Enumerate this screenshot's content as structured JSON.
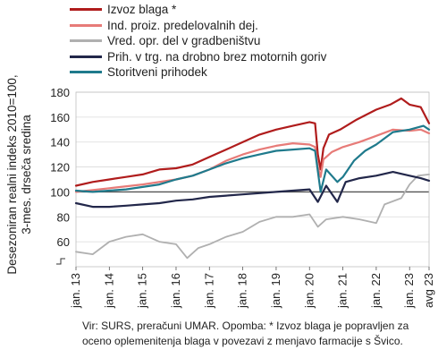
{
  "chart_data": {
    "type": "line",
    "ylabel": "Desezoniran realni indeks 2010=100, 3-mes. drseča sredina",
    "ylabel_lines": [
      "Desezoniran realni indeks 2010=100,",
      "3-mes. drseča sredina"
    ],
    "ylim": [
      40,
      180
    ],
    "yticks": [
      60,
      80,
      100,
      120,
      140,
      160,
      180
    ],
    "ytick_labels": [
      "60",
      "80",
      "100",
      "120",
      "140",
      "160",
      "180"
    ],
    "xlim": [
      "2013-01",
      "2023-08"
    ],
    "xtick_labels": [
      "jan. 13",
      "jan. 14",
      "jan. 15",
      "jan. 16",
      "jan. 17",
      "jan. 18",
      "jan. 19",
      "jan. 20",
      "jan. 21",
      "jan. 22",
      "jan. 23",
      "avg 23"
    ],
    "reference_line": 100,
    "grid": "horizontal",
    "legend_position": "top-left",
    "series": [
      {
        "name": "Izvoz blaga *",
        "color": "#b01c1c",
        "points": [
          [
            "2013-01",
            105
          ],
          [
            "2013-07",
            108
          ],
          [
            "2014-01",
            110
          ],
          [
            "2014-07",
            112
          ],
          [
            "2015-01",
            114
          ],
          [
            "2015-07",
            118
          ],
          [
            "2016-01",
            119
          ],
          [
            "2016-07",
            122
          ],
          [
            "2017-01",
            128
          ],
          [
            "2017-07",
            134
          ],
          [
            "2018-01",
            140
          ],
          [
            "2018-07",
            146
          ],
          [
            "2019-01",
            150
          ],
          [
            "2019-07",
            153
          ],
          [
            "2020-01",
            156
          ],
          [
            "2020-03",
            155
          ],
          [
            "2020-04",
            130
          ],
          [
            "2020-05",
            118
          ],
          [
            "2020-06",
            135
          ],
          [
            "2020-08",
            146
          ],
          [
            "2020-12",
            150
          ],
          [
            "2021-06",
            158
          ],
          [
            "2022-01",
            166
          ],
          [
            "2022-06",
            170
          ],
          [
            "2022-10",
            175
          ],
          [
            "2023-01",
            170
          ],
          [
            "2023-05",
            168
          ],
          [
            "2023-08",
            155
          ]
        ]
      },
      {
        "name": "Ind. proiz. predelovalnih dej.",
        "color": "#e77b78",
        "points": [
          [
            "2013-01",
            100
          ],
          [
            "2014-01",
            103
          ],
          [
            "2015-01",
            106
          ],
          [
            "2016-01",
            110
          ],
          [
            "2016-07",
            113
          ],
          [
            "2017-01",
            118
          ],
          [
            "2017-07",
            125
          ],
          [
            "2018-01",
            130
          ],
          [
            "2018-07",
            134
          ],
          [
            "2019-01",
            137
          ],
          [
            "2019-07",
            139
          ],
          [
            "2020-01",
            138
          ],
          [
            "2020-03",
            136
          ],
          [
            "2020-04",
            120
          ],
          [
            "2020-05",
            112
          ],
          [
            "2020-06",
            126
          ],
          [
            "2020-09",
            132
          ],
          [
            "2021-01",
            136
          ],
          [
            "2021-07",
            140
          ],
          [
            "2022-01",
            145
          ],
          [
            "2022-07",
            150
          ],
          [
            "2023-01",
            149
          ],
          [
            "2023-05",
            150
          ],
          [
            "2023-08",
            147
          ]
        ]
      },
      {
        "name": "Vred. opr. del v gradbeništvu",
        "color": "#b0b0b0",
        "points": [
          [
            "2013-01",
            52
          ],
          [
            "2013-07",
            50
          ],
          [
            "2014-01",
            60
          ],
          [
            "2014-07",
            64
          ],
          [
            "2015-01",
            66
          ],
          [
            "2015-07",
            60
          ],
          [
            "2016-01",
            58
          ],
          [
            "2016-05",
            47
          ],
          [
            "2016-09",
            55
          ],
          [
            "2017-01",
            58
          ],
          [
            "2017-07",
            64
          ],
          [
            "2018-01",
            68
          ],
          [
            "2018-07",
            76
          ],
          [
            "2019-01",
            80
          ],
          [
            "2019-07",
            80
          ],
          [
            "2020-01",
            82
          ],
          [
            "2020-04",
            72
          ],
          [
            "2020-07",
            78
          ],
          [
            "2021-01",
            80
          ],
          [
            "2021-07",
            78
          ],
          [
            "2022-01",
            75
          ],
          [
            "2022-04",
            90
          ],
          [
            "2022-10",
            95
          ],
          [
            "2023-01",
            106
          ],
          [
            "2023-04",
            113
          ],
          [
            "2023-08",
            114
          ]
        ]
      },
      {
        "name": "Prih. v trg. na drobno brez motornih goriv",
        "color": "#22274a",
        "points": [
          [
            "2013-01",
            91
          ],
          [
            "2013-07",
            88
          ],
          [
            "2014-01",
            88
          ],
          [
            "2014-07",
            89
          ],
          [
            "2015-01",
            90
          ],
          [
            "2015-07",
            91
          ],
          [
            "2016-01",
            93
          ],
          [
            "2016-07",
            94
          ],
          [
            "2017-01",
            96
          ],
          [
            "2017-07",
            97
          ],
          [
            "2018-01",
            98
          ],
          [
            "2018-07",
            99
          ],
          [
            "2019-01",
            100
          ],
          [
            "2019-07",
            101
          ],
          [
            "2020-01",
            102
          ],
          [
            "2020-04",
            92
          ],
          [
            "2020-07",
            105
          ],
          [
            "2020-11",
            92
          ],
          [
            "2021-02",
            108
          ],
          [
            "2021-07",
            111
          ],
          [
            "2022-01",
            113
          ],
          [
            "2022-07",
            116
          ],
          [
            "2023-01",
            113
          ],
          [
            "2023-05",
            111
          ],
          [
            "2023-08",
            109
          ]
        ]
      },
      {
        "name": "Storitveni prihodek",
        "color": "#1f7a8c",
        "points": [
          [
            "2013-01",
            101
          ],
          [
            "2013-07",
            100
          ],
          [
            "2014-01",
            101
          ],
          [
            "2014-07",
            102
          ],
          [
            "2015-01",
            104
          ],
          [
            "2015-07",
            106
          ],
          [
            "2016-01",
            110
          ],
          [
            "2016-07",
            113
          ],
          [
            "2017-01",
            118
          ],
          [
            "2017-07",
            123
          ],
          [
            "2018-01",
            127
          ],
          [
            "2018-07",
            130
          ],
          [
            "2019-01",
            133
          ],
          [
            "2019-07",
            134
          ],
          [
            "2020-01",
            135
          ],
          [
            "2020-03",
            133
          ],
          [
            "2020-05",
            100
          ],
          [
            "2020-07",
            118
          ],
          [
            "2020-11",
            108
          ],
          [
            "2021-01",
            112
          ],
          [
            "2021-05",
            125
          ],
          [
            "2021-09",
            133
          ],
          [
            "2022-01",
            138
          ],
          [
            "2022-07",
            148
          ],
          [
            "2023-01",
            150
          ],
          [
            "2023-06",
            153
          ],
          [
            "2023-08",
            150
          ]
        ]
      }
    ]
  },
  "source_note": "Vir: SURS, preračuni UMAR. Opomba: * Izvoz blaga je popravljen za oceno oplemenitenja blaga v povezavi z menjavo farmacije s Švico."
}
